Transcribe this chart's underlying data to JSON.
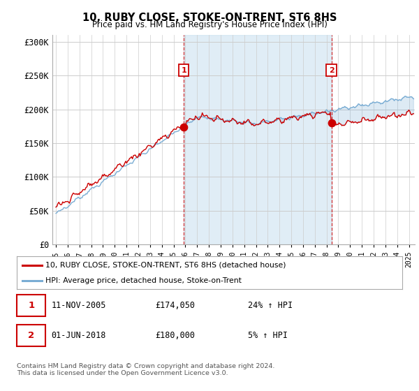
{
  "title": "10, RUBY CLOSE, STOKE-ON-TRENT, ST6 8HS",
  "subtitle": "Price paid vs. HM Land Registry's House Price Index (HPI)",
  "ylabel_ticks": [
    "£0",
    "£50K",
    "£100K",
    "£150K",
    "£200K",
    "£250K",
    "£300K"
  ],
  "ytick_vals": [
    0,
    50000,
    100000,
    150000,
    200000,
    250000,
    300000
  ],
  "ylim": [
    0,
    310000
  ],
  "xlim_start": 1994.7,
  "xlim_end": 2025.5,
  "red_color": "#cc0000",
  "blue_color": "#7aadd4",
  "fill_color": "#c8dff0",
  "marker1_year": 2005.87,
  "marker1_val": 174050,
  "marker2_year": 2018.42,
  "marker2_val": 180000,
  "legend_red_label": "10, RUBY CLOSE, STOKE-ON-TRENT, ST6 8HS (detached house)",
  "legend_blue_label": "HPI: Average price, detached house, Stoke-on-Trent",
  "sale1_label": "1",
  "sale1_date": "11-NOV-2005",
  "sale1_price": "£174,050",
  "sale1_hpi": "24% ↑ HPI",
  "sale2_label": "2",
  "sale2_date": "01-JUN-2018",
  "sale2_price": "£180,000",
  "sale2_hpi": "5% ↑ HPI",
  "footer": "Contains HM Land Registry data © Crown copyright and database right 2024.\nThis data is licensed under the Open Government Licence v3.0.",
  "background_color": "#ffffff",
  "grid_color": "#cccccc",
  "chart_bg": "#f0f4f8"
}
